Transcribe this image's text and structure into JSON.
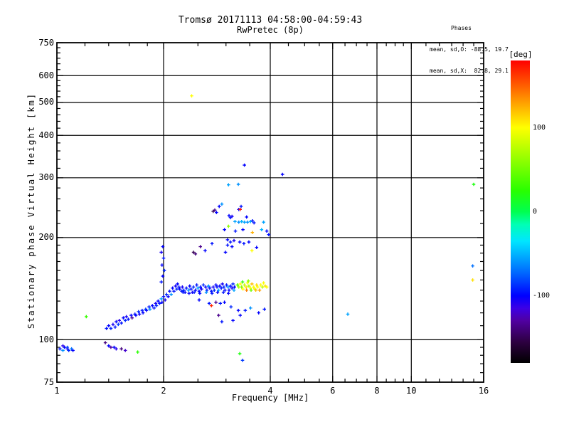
{
  "figure": {
    "title_line1": "Tromsø 20171113 04:58:00-04:59:43",
    "title_line2": "RwPretec (8p)",
    "stats": {
      "header": "Phases",
      "line_o": "mean, sd,O: -88.5, 19.7",
      "line_x": "mean, sd,X:  82.8, 29.1"
    }
  },
  "chart_data": {
    "type": "scatter",
    "title": "Tromsø 20171113 04:58:00-04:59:43",
    "subtitle": "RwPretec (8p)",
    "xlabel": "Frequency [MHz]",
    "ylabel": "Stationary phase Virtual Height [km]",
    "x_scale": "log",
    "y_scale": "log",
    "xlim": [
      1,
      16
    ],
    "ylim": [
      75,
      750
    ],
    "x_major_ticks": [
      1,
      2,
      4,
      6,
      8,
      10,
      16
    ],
    "x_minor_ticks": [
      1.2,
      1.4,
      1.6,
      1.8,
      2.5,
      3,
      3.5,
      4.5,
      5,
      5.5,
      6.5,
      7,
      7.5,
      8.5,
      9,
      9.5,
      11,
      12,
      13,
      14,
      15
    ],
    "x_gridlines": [
      2,
      4,
      6,
      8,
      10
    ],
    "y_major_ticks": [
      75,
      100,
      200,
      300,
      400,
      500,
      600,
      750
    ],
    "y_minor_ticks": [
      80,
      85,
      90,
      95,
      110,
      120,
      130,
      140,
      150,
      160,
      170,
      180,
      190,
      220,
      240,
      260,
      280,
      320,
      340,
      360,
      380,
      420,
      440,
      460,
      480,
      520,
      540,
      560,
      580,
      625,
      650,
      675,
      700,
      725
    ],
    "y_gridlines": [
      100,
      200,
      300,
      400,
      500,
      600
    ],
    "grid": true,
    "marker": "plus",
    "colorbar": {
      "title": "[deg]",
      "min": -180,
      "max": 180,
      "tick_labels": [
        100,
        0,
        -100
      ],
      "stops": [
        [
          -180,
          "#000000"
        ],
        [
          -155,
          "#2d0040"
        ],
        [
          -130,
          "#5000a0"
        ],
        [
          -115,
          "#3c00e6"
        ],
        [
          -100,
          "#0000ff"
        ],
        [
          -75,
          "#0060ff"
        ],
        [
          -50,
          "#00b4ff"
        ],
        [
          -35,
          "#00e6ff"
        ],
        [
          -15,
          "#00ffb4"
        ],
        [
          0,
          "#00ff50"
        ],
        [
          25,
          "#28ff00"
        ],
        [
          60,
          "#8cff00"
        ],
        [
          100,
          "#ffff00"
        ],
        [
          120,
          "#ffc000"
        ],
        [
          145,
          "#ff6e00"
        ],
        [
          180,
          "#ff0000"
        ]
      ]
    },
    "points": [
      [
        1.02,
        94,
        -95
      ],
      [
        1.04,
        93,
        -60
      ],
      [
        1.05,
        95,
        -100
      ],
      [
        1.07,
        94,
        -105
      ],
      [
        1.08,
        93,
        -90
      ],
      [
        1.1,
        94,
        -70
      ],
      [
        1.11,
        93,
        -100
      ],
      [
        1.04,
        96,
        -110
      ],
      [
        1.07,
        95,
        -85
      ],
      [
        1.37,
        98,
        -140
      ],
      [
        1.4,
        96,
        -100
      ],
      [
        1.42,
        95,
        -130
      ],
      [
        1.45,
        95,
        -100
      ],
      [
        1.47,
        94,
        -110
      ],
      [
        1.52,
        94,
        -140
      ],
      [
        1.56,
        93,
        -120
      ],
      [
        1.21,
        117,
        30
      ],
      [
        1.69,
        92,
        25
      ],
      [
        3.28,
        91,
        20
      ],
      [
        3.34,
        87,
        -85
      ],
      [
        1.38,
        108,
        -95
      ],
      [
        1.4,
        110,
        -100
      ],
      [
        1.42,
        108,
        -90
      ],
      [
        1.44,
        111,
        -105
      ],
      [
        1.46,
        109,
        -95
      ],
      [
        1.47,
        113,
        -100
      ],
      [
        1.49,
        111,
        -85
      ],
      [
        1.5,
        114,
        -110
      ],
      [
        1.52,
        112,
        -95
      ],
      [
        1.54,
        116,
        -100
      ],
      [
        1.56,
        114,
        -90
      ],
      [
        1.57,
        117,
        -105
      ],
      [
        1.59,
        115,
        -95
      ],
      [
        1.62,
        118,
        -100
      ],
      [
        1.63,
        116,
        -135
      ],
      [
        1.66,
        119,
        -95
      ],
      [
        1.67,
        118,
        -100
      ],
      [
        1.7,
        121,
        -90
      ],
      [
        1.71,
        119,
        -105
      ],
      [
        1.74,
        122,
        -95
      ],
      [
        1.75,
        120,
        -100
      ],
      [
        1.78,
        123,
        -85
      ],
      [
        1.79,
        122,
        -100
      ],
      [
        1.82,
        125,
        -95
      ],
      [
        1.83,
        123,
        -60
      ],
      [
        1.86,
        126,
        -100
      ],
      [
        1.88,
        124,
        -95
      ],
      [
        1.9,
        128,
        -105
      ],
      [
        1.91,
        126,
        -90
      ],
      [
        1.93,
        130,
        -100
      ],
      [
        1.95,
        128,
        -95
      ],
      [
        1.97,
        132,
        -55
      ],
      [
        1.98,
        129,
        -100
      ],
      [
        2.0,
        134,
        -95
      ],
      [
        2.02,
        131,
        -105
      ],
      [
        2.04,
        136,
        -90
      ],
      [
        2.06,
        134,
        -100
      ],
      [
        2.08,
        139,
        -95
      ],
      [
        2.1,
        136,
        -60
      ],
      [
        2.12,
        142,
        -100
      ],
      [
        2.14,
        139,
        -95
      ],
      [
        2.16,
        144,
        -105
      ],
      [
        2.18,
        141,
        -90
      ],
      [
        2.19,
        146,
        -100
      ],
      [
        2.21,
        143,
        -95
      ],
      [
        1.97,
        148,
        -95
      ],
      [
        1.99,
        154,
        -100
      ],
      [
        2.01,
        160,
        -90
      ],
      [
        1.98,
        166,
        -100
      ],
      [
        2.0,
        174,
        -95
      ],
      [
        1.97,
        181,
        -105
      ],
      [
        1.99,
        188,
        -100
      ],
      [
        2.22,
        141,
        -100
      ],
      [
        2.25,
        139,
        -95
      ],
      [
        2.26,
        143,
        -105
      ],
      [
        2.28,
        140,
        -90
      ],
      [
        2.3,
        138,
        -100
      ],
      [
        2.32,
        142,
        -95
      ],
      [
        2.35,
        140,
        -60
      ],
      [
        2.37,
        144,
        -100
      ],
      [
        2.39,
        141,
        -95
      ],
      [
        2.41,
        138,
        -105
      ],
      [
        2.43,
        143,
        -90
      ],
      [
        2.46,
        140,
        -100
      ],
      [
        2.48,
        145,
        -95
      ],
      [
        2.5,
        142,
        -55
      ],
      [
        2.52,
        139,
        -100
      ],
      [
        2.54,
        143,
        -95
      ],
      [
        2.56,
        141,
        -105
      ],
      [
        2.59,
        145,
        -90
      ],
      [
        2.63,
        143,
        -100
      ],
      [
        2.65,
        140,
        -95
      ],
      [
        2.68,
        144,
        -60
      ],
      [
        2.7,
        142,
        -100
      ],
      [
        2.73,
        139,
        -95
      ],
      [
        2.76,
        143,
        -105
      ],
      [
        2.78,
        140,
        -90
      ],
      [
        2.81,
        145,
        -100
      ],
      [
        2.83,
        143,
        -95
      ],
      [
        2.86,
        140,
        -55
      ],
      [
        2.88,
        144,
        -100
      ],
      [
        2.91,
        142,
        -95
      ],
      [
        2.93,
        146,
        -105
      ],
      [
        2.96,
        143,
        -90
      ],
      [
        2.98,
        140,
        -100
      ],
      [
        3.01,
        145,
        -95
      ],
      [
        3.04,
        143,
        -60
      ],
      [
        3.06,
        140,
        -100
      ],
      [
        3.09,
        144,
        -95
      ],
      [
        3.12,
        142,
        -105
      ],
      [
        3.14,
        146,
        -90
      ],
      [
        3.17,
        143,
        -100
      ],
      [
        2.27,
        138,
        -95
      ],
      [
        2.36,
        137,
        -100
      ],
      [
        2.44,
        138,
        -95
      ],
      [
        2.53,
        137,
        -100
      ],
      [
        2.64,
        138,
        -60
      ],
      [
        2.74,
        137,
        -95
      ],
      [
        2.84,
        138,
        -100
      ],
      [
        2.95,
        138,
        -95
      ],
      [
        3.05,
        137,
        -100
      ],
      [
        3.16,
        140,
        -55
      ],
      [
        3.23,
        145,
        40
      ],
      [
        3.26,
        143,
        70
      ],
      [
        3.29,
        146,
        100
      ],
      [
        3.32,
        143,
        60
      ],
      [
        3.35,
        141,
        100
      ],
      [
        3.38,
        145,
        80
      ],
      [
        3.42,
        143,
        110
      ],
      [
        3.45,
        147,
        100
      ],
      [
        3.48,
        144,
        70
      ],
      [
        3.52,
        142,
        100
      ],
      [
        3.55,
        146,
        120
      ],
      [
        3.59,
        143,
        100
      ],
      [
        3.62,
        141,
        90
      ],
      [
        3.66,
        145,
        110
      ],
      [
        3.69,
        143,
        100
      ],
      [
        3.73,
        140,
        130
      ],
      [
        3.76,
        145,
        100
      ],
      [
        3.8,
        143,
        80
      ],
      [
        3.83,
        147,
        100
      ],
      [
        3.87,
        144,
        110
      ],
      [
        3.91,
        143,
        100
      ],
      [
        3.43,
        140,
        140
      ],
      [
        3.53,
        140,
        50
      ],
      [
        3.64,
        140,
        120
      ],
      [
        3.34,
        148,
        30
      ],
      [
        3.47,
        149,
        60
      ],
      [
        2.52,
        131,
        -100
      ],
      [
        2.69,
        128,
        -95
      ],
      [
        2.73,
        126,
        170
      ],
      [
        2.81,
        129,
        -135
      ],
      [
        2.89,
        128,
        -95
      ],
      [
        2.97,
        129,
        -100
      ],
      [
        3.1,
        125,
        -90
      ],
      [
        3.25,
        122,
        -100
      ],
      [
        3.4,
        122,
        -95
      ],
      [
        3.52,
        124,
        -60
      ],
      [
        3.71,
        120,
        -100
      ],
      [
        3.85,
        123,
        -95
      ],
      [
        3.29,
        118,
        -100
      ],
      [
        2.86,
        118,
        -135
      ],
      [
        2.92,
        113,
        -95
      ],
      [
        3.14,
        114,
        -100
      ],
      [
        2.79,
        241,
        -135
      ],
      [
        2.82,
        237,
        -100
      ],
      [
        2.76,
        239,
        -150
      ],
      [
        3.06,
        232,
        -100
      ],
      [
        3.09,
        229,
        -95
      ],
      [
        3.12,
        231,
        -105
      ],
      [
        3.26,
        242,
        -100
      ],
      [
        3.29,
        242,
        175
      ],
      [
        3.31,
        247,
        -95
      ],
      [
        3.18,
        223,
        -55
      ],
      [
        3.26,
        222,
        -60
      ],
      [
        3.32,
        223,
        -50
      ],
      [
        3.38,
        222,
        -55
      ],
      [
        3.45,
        222,
        -60
      ],
      [
        3.52,
        223,
        -50
      ],
      [
        3.43,
        230,
        -100
      ],
      [
        3.56,
        224,
        -95
      ],
      [
        3.05,
        286,
        -55
      ],
      [
        3.25,
        287,
        -60
      ],
      [
        3.38,
        327,
        -100
      ],
      [
        4.33,
        307,
        -100
      ],
      [
        3.6,
        221,
        -95
      ],
      [
        3.83,
        222,
        -55
      ],
      [
        3.91,
        209,
        -100
      ],
      [
        3.78,
        211,
        -50
      ],
      [
        3.56,
        207,
        125
      ],
      [
        3.55,
        183,
        100
      ],
      [
        3.05,
        216,
        60
      ],
      [
        2.97,
        211,
        -100
      ],
      [
        3.19,
        209,
        -95
      ],
      [
        3.35,
        211,
        -100
      ],
      [
        3.03,
        197,
        -100
      ],
      [
        3.09,
        194,
        -95
      ],
      [
        3.16,
        196,
        -105
      ],
      [
        3.28,
        194,
        -100
      ],
      [
        3.37,
        192,
        -95
      ],
      [
        3.48,
        194,
        -100
      ],
      [
        3.03,
        190,
        -95
      ],
      [
        3.12,
        188,
        -100
      ],
      [
        2.54,
        188,
        -135
      ],
      [
        2.62,
        183,
        -100
      ],
      [
        2.43,
        181,
        -150
      ],
      [
        2.46,
        179,
        -140
      ],
      [
        2.99,
        181,
        -100
      ],
      [
        2.74,
        192,
        -95
      ],
      [
        3.66,
        187,
        -100
      ],
      [
        3.96,
        204,
        -95
      ],
      [
        2.87,
        247,
        -100
      ],
      [
        2.92,
        251,
        -60
      ],
      [
        2.4,
        523,
        100
      ],
      [
        15.0,
        287,
        20
      ],
      [
        14.9,
        165,
        -70
      ],
      [
        14.9,
        150,
        110
      ],
      [
        6.62,
        119,
        -55
      ]
    ]
  }
}
